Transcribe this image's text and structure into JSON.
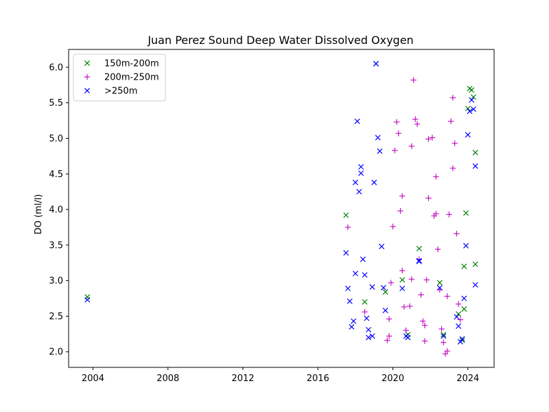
{
  "chart_data": {
    "type": "scatter",
    "title": "Juan Perez Sound Deep Water Dissolved Oxygen",
    "xlabel": "",
    "ylabel": "DO (ml/l)",
    "xlim": [
      2002.7,
      2025.4
    ],
    "ylim": [
      1.78,
      6.25
    ],
    "xticks": [
      2004,
      2008,
      2012,
      2016,
      2020,
      2024
    ],
    "yticks": [
      2.0,
      2.5,
      3.0,
      3.5,
      4.0,
      4.5,
      5.0,
      5.5,
      6.0
    ],
    "grid": false,
    "legend_position": "top-left",
    "series": [
      {
        "name": "150m-200m",
        "marker": "x",
        "color": "#008000",
        "points": [
          [
            2003.7,
            2.77
          ],
          [
            2017.5,
            3.92
          ],
          [
            2018.5,
            2.7
          ],
          [
            2019.6,
            2.84
          ],
          [
            2020.5,
            3.01
          ],
          [
            2020.8,
            2.24
          ],
          [
            2021.4,
            3.45
          ],
          [
            2022.5,
            2.97
          ],
          [
            2022.7,
            2.24
          ],
          [
            2023.5,
            2.53
          ],
          [
            2023.7,
            2.16
          ],
          [
            2023.8,
            2.6
          ],
          [
            2023.8,
            3.2
          ],
          [
            2023.9,
            3.95
          ],
          [
            2024.0,
            5.42
          ],
          [
            2024.1,
            5.7
          ],
          [
            2024.2,
            5.68
          ],
          [
            2024.3,
            5.58
          ],
          [
            2024.4,
            4.8
          ],
          [
            2024.4,
            3.23
          ]
        ]
      },
      {
        "name": "200m-250m",
        "marker": "+",
        "color": "#bf00bf",
        "points": [
          [
            2017.6,
            3.75
          ],
          [
            2018.5,
            2.56
          ],
          [
            2019.7,
            2.16
          ],
          [
            2019.8,
            2.22
          ],
          [
            2019.8,
            2.46
          ],
          [
            2019.9,
            2.97
          ],
          [
            2020.0,
            3.76
          ],
          [
            2020.1,
            4.83
          ],
          [
            2020.2,
            5.23
          ],
          [
            2020.3,
            5.07
          ],
          [
            2020.4,
            3.98
          ],
          [
            2020.5,
            4.19
          ],
          [
            2020.5,
            3.14
          ],
          [
            2020.6,
            2.63
          ],
          [
            2020.7,
            2.3
          ],
          [
            2020.9,
            2.64
          ],
          [
            2021.0,
            3.02
          ],
          [
            2021.0,
            4.89
          ],
          [
            2021.1,
            5.82
          ],
          [
            2021.2,
            5.27
          ],
          [
            2021.3,
            5.2
          ],
          [
            2021.4,
            3.3
          ],
          [
            2021.5,
            2.8
          ],
          [
            2021.6,
            2.43
          ],
          [
            2021.7,
            2.37
          ],
          [
            2021.7,
            2.15
          ],
          [
            2021.8,
            3.01
          ],
          [
            2021.9,
            4.16
          ],
          [
            2021.9,
            4.99
          ],
          [
            2022.1,
            5.01
          ],
          [
            2022.2,
            3.91
          ],
          [
            2022.3,
            4.46
          ],
          [
            2022.3,
            3.94
          ],
          [
            2022.4,
            3.44
          ],
          [
            2022.5,
            2.87
          ],
          [
            2022.6,
            2.32
          ],
          [
            2022.7,
            2.13
          ],
          [
            2022.8,
            1.97
          ],
          [
            2022.9,
            2.01
          ],
          [
            2022.9,
            2.78
          ],
          [
            2023.0,
            3.93
          ],
          [
            2023.1,
            5.24
          ],
          [
            2023.2,
            5.57
          ],
          [
            2023.2,
            4.58
          ],
          [
            2023.3,
            4.93
          ],
          [
            2023.4,
            3.66
          ],
          [
            2023.5,
            2.67
          ],
          [
            2023.6,
            2.45
          ]
        ]
      },
      {
        "name": ">250m",
        "marker": "x",
        "color": "#0000ff",
        "points": [
          [
            2003.7,
            2.73
          ],
          [
            2017.5,
            3.39
          ],
          [
            2017.6,
            2.89
          ],
          [
            2017.7,
            2.71
          ],
          [
            2017.8,
            2.35
          ],
          [
            2017.9,
            2.43
          ],
          [
            2018.0,
            3.1
          ],
          [
            2018.0,
            4.38
          ],
          [
            2018.1,
            5.24
          ],
          [
            2018.2,
            4.25
          ],
          [
            2018.3,
            4.51
          ],
          [
            2018.3,
            4.6
          ],
          [
            2018.4,
            3.3
          ],
          [
            2018.5,
            3.08
          ],
          [
            2018.6,
            2.47
          ],
          [
            2018.7,
            2.31
          ],
          [
            2018.7,
            2.2
          ],
          [
            2018.9,
            2.22
          ],
          [
            2018.9,
            2.91
          ],
          [
            2019.0,
            4.38
          ],
          [
            2019.1,
            6.05
          ],
          [
            2019.1,
            6.05
          ],
          [
            2019.2,
            5.01
          ],
          [
            2019.3,
            4.82
          ],
          [
            2019.4,
            3.48
          ],
          [
            2019.5,
            2.9
          ],
          [
            2019.6,
            2.58
          ],
          [
            2020.5,
            2.89
          ],
          [
            2020.7,
            2.22
          ],
          [
            2020.8,
            2.2
          ],
          [
            2021.4,
            3.28
          ],
          [
            2021.4,
            3.27
          ],
          [
            2022.5,
            2.9
          ],
          [
            2022.7,
            2.22
          ],
          [
            2023.4,
            2.49
          ],
          [
            2023.5,
            2.36
          ],
          [
            2023.6,
            2.14
          ],
          [
            2023.7,
            2.18
          ],
          [
            2023.8,
            2.75
          ],
          [
            2023.9,
            3.49
          ],
          [
            2024.0,
            5.05
          ],
          [
            2024.1,
            5.38
          ],
          [
            2024.2,
            5.54
          ],
          [
            2024.3,
            5.41
          ],
          [
            2024.4,
            4.61
          ],
          [
            2024.4,
            2.94
          ]
        ]
      }
    ]
  }
}
